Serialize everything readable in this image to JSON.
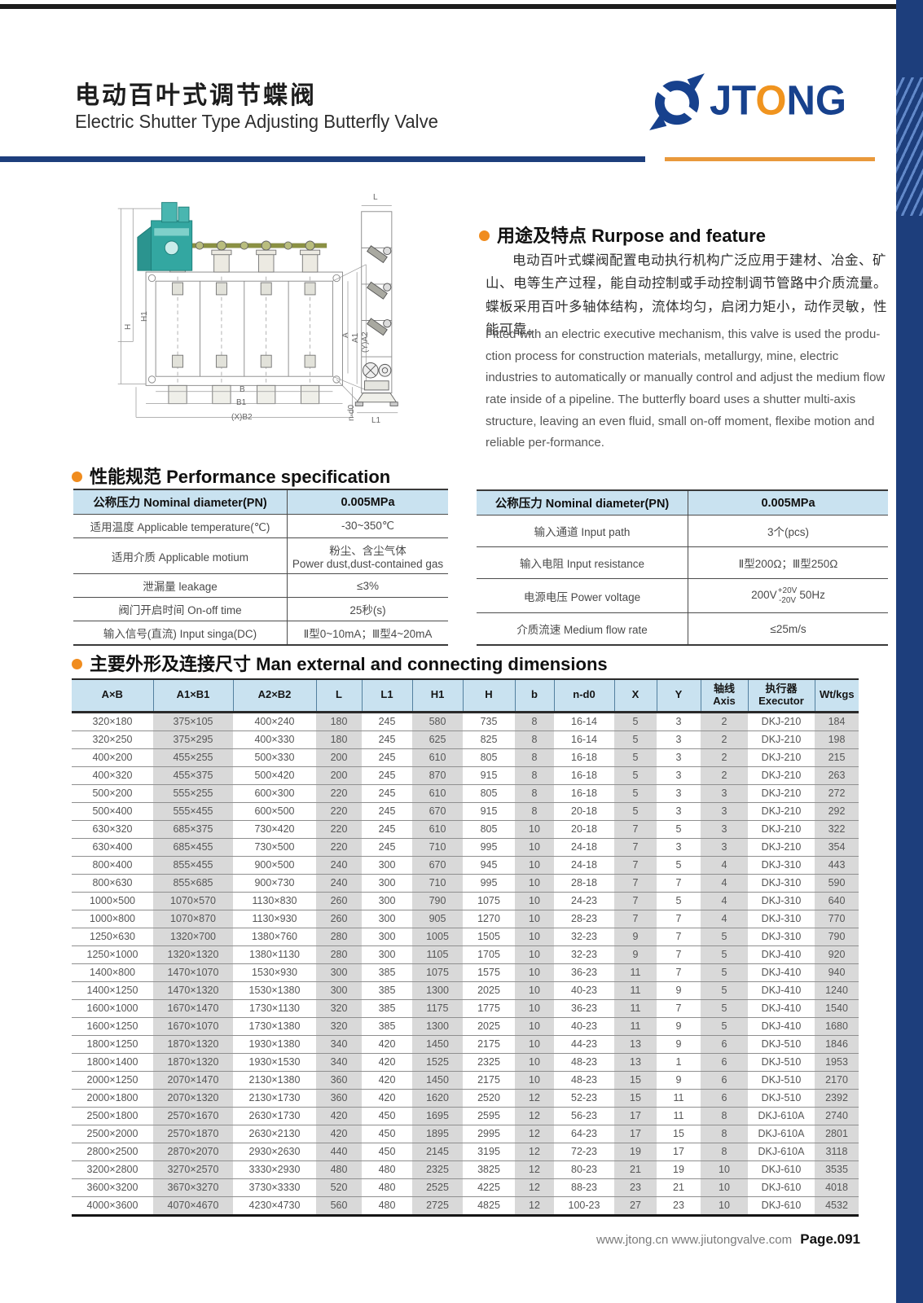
{
  "header": {
    "title_zh": "电动百叶式调节蝶阀",
    "title_en": "Electric Shutter Type Adjusting Butterfly Valve",
    "brand_pre": "JT",
    "brand_o": "O",
    "brand_post": "NG",
    "colors": {
      "navy": "#17418d",
      "orange": "#f0941f"
    }
  },
  "drawing": {
    "labels": {
      "h1": "H1",
      "h": "H",
      "a": "A",
      "a1": "A1",
      "ya2": "(Y)A2",
      "nd0": "n-d0",
      "b": "B",
      "b1": "B1",
      "xb2": "(X)B2",
      "l": "L",
      "l1": "L1"
    }
  },
  "purpose": {
    "title": "用途及特点 Rurpose and feature",
    "zh": "电动百叶式蝶阀配置电动执行机构广泛应用于建材、冶金、矿山、电等生产过程，能自动控制或手动控制调节管路中介质流量。蝶板采用百叶多轴体结构，流体均匀，启闭力矩小，动作灵敏，性能可靠。",
    "en": "Fitted with an electric executive mechanism, this valve is used the produ-ction process for construction materials, metallurgy, mine, electric industries to automatically or manually control and adjust the medium flow rate inside of a pipeline. The butterfly board uses a shutter multi-axis structure, leaving an even fluid, small on-off moment, flexibe motion and reliable per-formance."
  },
  "performance": {
    "title": "性能规范 Performance specification",
    "left": {
      "header": {
        "label": "公称压力 Nominal diameter(PN)",
        "value": "0.005MPa"
      },
      "rows": [
        {
          "label": "适用温度 Applicable temperature(℃)",
          "value": "-30~350℃"
        },
        {
          "label": "适用介质 Applicable motium",
          "value": "粉尘、含尘气体\nPower dust,dust-contained gas"
        },
        {
          "label": "泄漏量 leakage",
          "value": "≤3%"
        },
        {
          "label": "阀门开启时间 On-off time",
          "value": "25秒(s)"
        },
        {
          "label": "输入信号(直流) Input singa(DC)",
          "value": "Ⅱ型0~10mA；Ⅲ型4~20mA"
        }
      ]
    },
    "right": {
      "header": {
        "label": "公称压力 Nominal diameter(PN)",
        "value": "0.005MPa"
      },
      "rows": [
        {
          "label": "输入通道 Input path",
          "value": "3个(pcs)"
        },
        {
          "label": "输入电阻 Input resistance",
          "value": "Ⅱ型200Ω；Ⅲ型250Ω"
        },
        {
          "label": "电源电压 Power voltage",
          "voltage": {
            "base": "200V",
            "sup": "+20V",
            "sub": "-20V",
            "suffix": "50Hz"
          }
        },
        {
          "label": "介质流速 Medium flow rate",
          "value": "≤25m/s"
        }
      ]
    }
  },
  "dimensions": {
    "title": "主要外形及连接尺寸 Man external and connecting dimensions",
    "headers": [
      "A×B",
      "A1×B1",
      "A2×B2",
      "L",
      "L1",
      "H1",
      "H",
      "b",
      "n-d0",
      "X",
      "Y",
      "轴线\nAxis",
      "执行器\nExecutor",
      "Wt/kgs"
    ],
    "rows": [
      [
        "320×180",
        "375×105",
        "400×240",
        "180",
        "245",
        "580",
        "735",
        "8",
        "16-14",
        "5",
        "3",
        "2",
        "DKJ-210",
        "184"
      ],
      [
        "320×250",
        "375×295",
        "400×330",
        "180",
        "245",
        "625",
        "825",
        "8",
        "16-14",
        "5",
        "3",
        "2",
        "DKJ-210",
        "198"
      ],
      [
        "400×200",
        "455×255",
        "500×330",
        "200",
        "245",
        "610",
        "805",
        "8",
        "16-18",
        "5",
        "3",
        "2",
        "DKJ-210",
        "215"
      ],
      [
        "400×320",
        "455×375",
        "500×420",
        "200",
        "245",
        "870",
        "915",
        "8",
        "16-18",
        "5",
        "3",
        "2",
        "DKJ-210",
        "263"
      ],
      [
        "500×200",
        "555×255",
        "600×300",
        "220",
        "245",
        "610",
        "805",
        "8",
        "16-18",
        "5",
        "3",
        "3",
        "DKJ-210",
        "272"
      ],
      [
        "500×400",
        "555×455",
        "600×500",
        "220",
        "245",
        "670",
        "915",
        "8",
        "20-18",
        "5",
        "3",
        "3",
        "DKJ-210",
        "292"
      ],
      [
        "630×320",
        "685×375",
        "730×420",
        "220",
        "245",
        "610",
        "805",
        "10",
        "20-18",
        "7",
        "5",
        "3",
        "DKJ-210",
        "322"
      ],
      [
        "630×400",
        "685×455",
        "730×500",
        "220",
        "245",
        "710",
        "995",
        "10",
        "24-18",
        "7",
        "3",
        "3",
        "DKJ-210",
        "354"
      ],
      [
        "800×400",
        "855×455",
        "900×500",
        "240",
        "300",
        "670",
        "945",
        "10",
        "24-18",
        "7",
        "5",
        "4",
        "DKJ-310",
        "443"
      ],
      [
        "800×630",
        "855×685",
        "900×730",
        "240",
        "300",
        "710",
        "995",
        "10",
        "28-18",
        "7",
        "7",
        "4",
        "DKJ-310",
        "590"
      ],
      [
        "1000×500",
        "1070×570",
        "1130×830",
        "260",
        "300",
        "790",
        "1075",
        "10",
        "24-23",
        "7",
        "5",
        "4",
        "DKJ-310",
        "640"
      ],
      [
        "1000×800",
        "1070×870",
        "1130×930",
        "260",
        "300",
        "905",
        "1270",
        "10",
        "28-23",
        "7",
        "7",
        "4",
        "DKJ-310",
        "770"
      ],
      [
        "1250×630",
        "1320×700",
        "1380×760",
        "280",
        "300",
        "1005",
        "1505",
        "10",
        "32-23",
        "9",
        "7",
        "5",
        "DKJ-310",
        "790"
      ],
      [
        "1250×1000",
        "1320×1320",
        "1380×1130",
        "280",
        "300",
        "1105",
        "1705",
        "10",
        "32-23",
        "9",
        "7",
        "5",
        "DKJ-410",
        "920"
      ],
      [
        "1400×800",
        "1470×1070",
        "1530×930",
        "300",
        "385",
        "1075",
        "1575",
        "10",
        "36-23",
        "11",
        "7",
        "5",
        "DKJ-410",
        "940"
      ],
      [
        "1400×1250",
        "1470×1320",
        "1530×1380",
        "300",
        "385",
        "1300",
        "2025",
        "10",
        "40-23",
        "11",
        "9",
        "5",
        "DKJ-410",
        "1240"
      ],
      [
        "1600×1000",
        "1670×1470",
        "1730×1130",
        "320",
        "385",
        "1175",
        "1775",
        "10",
        "36-23",
        "11",
        "7",
        "5",
        "DKJ-410",
        "1540"
      ],
      [
        "1600×1250",
        "1670×1070",
        "1730×1380",
        "320",
        "385",
        "1300",
        "2025",
        "10",
        "40-23",
        "11",
        "9",
        "5",
        "DKJ-410",
        "1680"
      ],
      [
        "1800×1250",
        "1870×1320",
        "1930×1380",
        "340",
        "420",
        "1450",
        "2175",
        "10",
        "44-23",
        "13",
        "9",
        "6",
        "DKJ-510",
        "1846"
      ],
      [
        "1800×1400",
        "1870×1320",
        "1930×1530",
        "340",
        "420",
        "1525",
        "2325",
        "10",
        "48-23",
        "13",
        "1",
        "6",
        "DKJ-510",
        "1953"
      ],
      [
        "2000×1250",
        "2070×1470",
        "2130×1380",
        "360",
        "420",
        "1450",
        "2175",
        "10",
        "48-23",
        "15",
        "9",
        "6",
        "DKJ-510",
        "2170"
      ],
      [
        "2000×1800",
        "2070×1320",
        "2130×1730",
        "360",
        "420",
        "1620",
        "2520",
        "12",
        "52-23",
        "15",
        "11",
        "6",
        "DKJ-510",
        "2392"
      ],
      [
        "2500×1800",
        "2570×1670",
        "2630×1730",
        "420",
        "450",
        "1695",
        "2595",
        "12",
        "56-23",
        "17",
        "11",
        "8",
        "DKJ-610A",
        "2740"
      ],
      [
        "2500×2000",
        "2570×1870",
        "2630×2130",
        "420",
        "450",
        "1895",
        "2995",
        "12",
        "64-23",
        "17",
        "15",
        "8",
        "DKJ-610A",
        "2801"
      ],
      [
        "2800×2500",
        "2870×2070",
        "2930×2630",
        "440",
        "450",
        "2145",
        "3195",
        "12",
        "72-23",
        "19",
        "17",
        "8",
        "DKJ-610A",
        "3118"
      ],
      [
        "3200×2800",
        "3270×2570",
        "3330×2930",
        "480",
        "480",
        "2325",
        "3825",
        "12",
        "80-23",
        "21",
        "19",
        "10",
        "DKJ-610",
        "3535"
      ],
      [
        "3600×3200",
        "3670×3270",
        "3730×3330",
        "520",
        "480",
        "2525",
        "4225",
        "12",
        "88-23",
        "23",
        "21",
        "10",
        "DKJ-610",
        "4018"
      ],
      [
        "4000×3600",
        "4070×4670",
        "4230×4730",
        "560",
        "480",
        "2725",
        "4825",
        "12",
        "100-23",
        "27",
        "23",
        "10",
        "DKJ-610",
        "4532"
      ]
    ]
  },
  "footer": {
    "urls": "www.jtong.cn  www.jiutongvalve.com",
    "page": "Page.091"
  }
}
